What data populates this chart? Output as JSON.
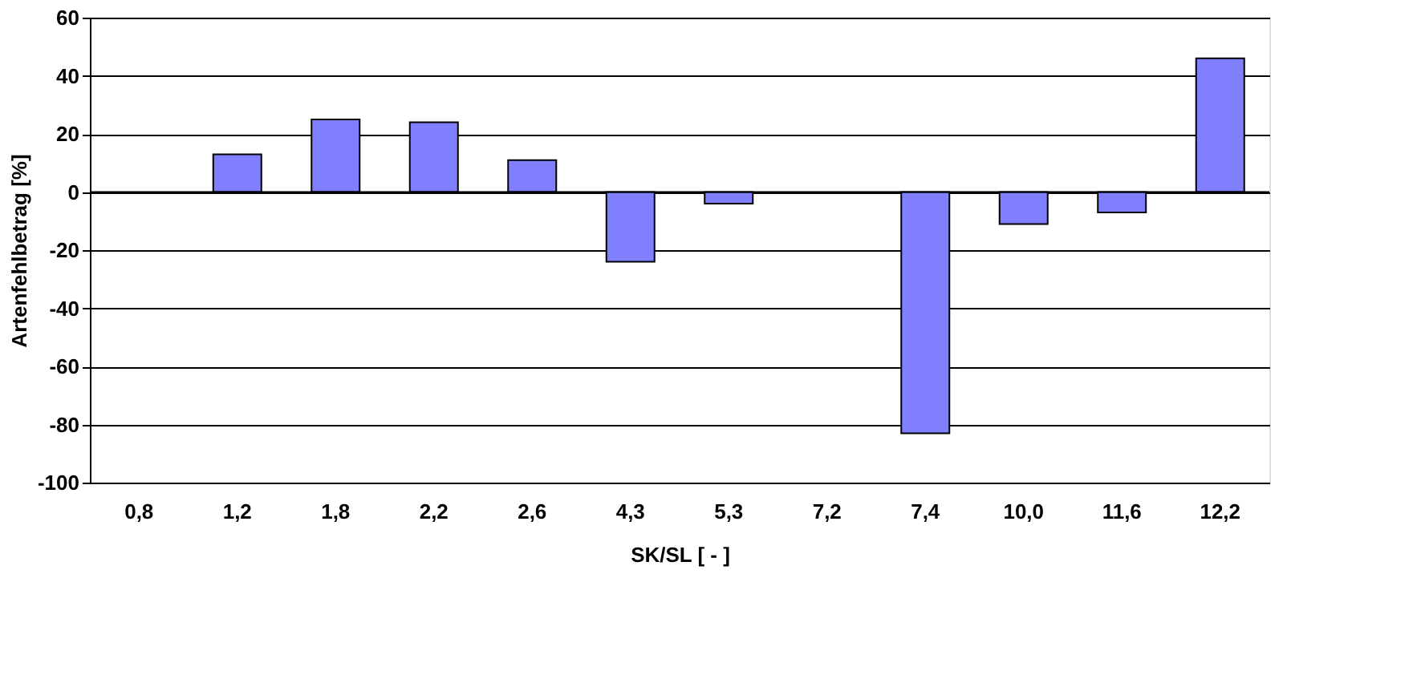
{
  "chart_data": {
    "type": "bar",
    "xlabel": "SK/SL [ - ]",
    "ylabel": "Artenfehlbetrag [%]",
    "categories": [
      "0,8",
      "1,2",
      "1,8",
      "2,2",
      "2,6",
      "4,3",
      "5,3",
      "7,2",
      "7,4",
      "10,0",
      "11,6",
      "12,2"
    ],
    "series": [
      {
        "color": "#8080ff",
        "values": [
          null,
          13,
          25,
          24,
          11,
          -24,
          -4,
          null,
          -83,
          -11,
          -7,
          46
        ]
      }
    ],
    "ylim": [
      -100,
      60
    ],
    "yticks": [
      -100,
      -80,
      -60,
      -40,
      -20,
      0,
      20,
      40,
      60
    ],
    "grid": "y",
    "legend": false
  }
}
